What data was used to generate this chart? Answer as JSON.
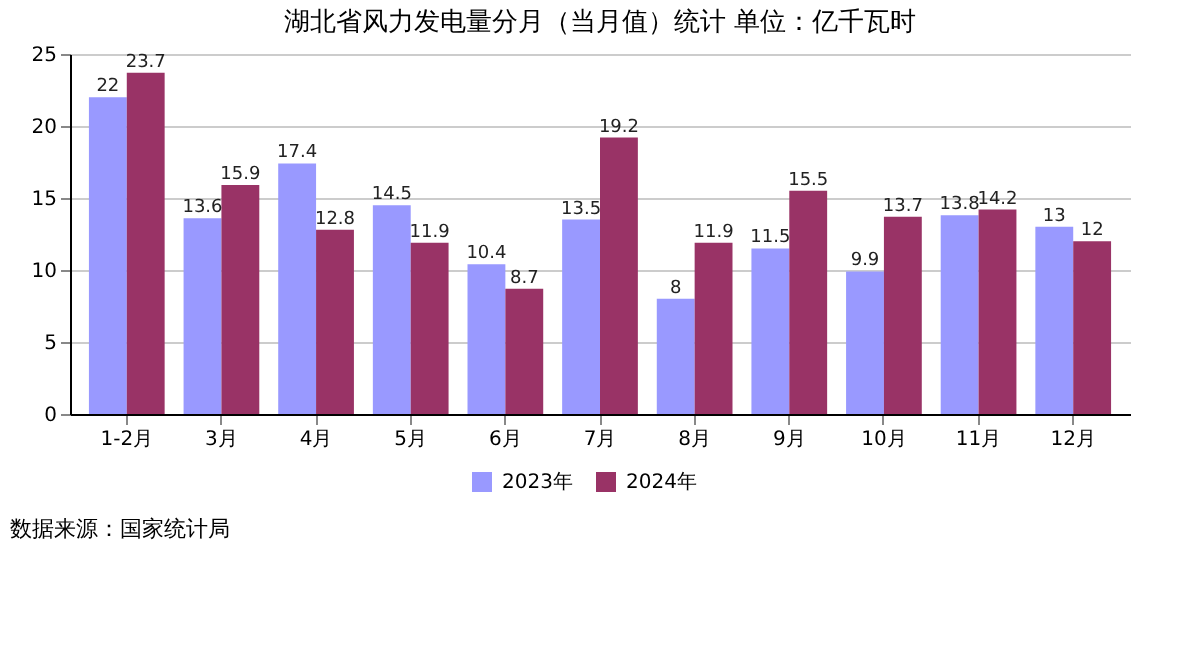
{
  "chart_data": {
    "type": "bar",
    "title": "湖北省风力发电量分月（当月值）统计 单位：亿千瓦时",
    "categories": [
      "1-2月",
      "3月",
      "4月",
      "5月",
      "6月",
      "7月",
      "8月",
      "9月",
      "10月",
      "11月",
      "12月"
    ],
    "series": [
      {
        "name": "2023年",
        "color": "#9999ff",
        "values": [
          22,
          13.6,
          17.4,
          14.5,
          10.4,
          13.5,
          8,
          11.5,
          9.9,
          13.8,
          13
        ]
      },
      {
        "name": "2024年",
        "color": "#993366",
        "values": [
          23.7,
          15.9,
          12.8,
          11.9,
          8.7,
          19.2,
          11.9,
          15.5,
          13.7,
          14.2,
          12
        ]
      }
    ],
    "ylim": [
      0,
      25
    ],
    "yticks": [
      0,
      5,
      10,
      15,
      20,
      25
    ],
    "grid": "y",
    "legend": "bottom",
    "data_labels": true,
    "annotations": [
      "数据来源：国家统计局"
    ]
  }
}
